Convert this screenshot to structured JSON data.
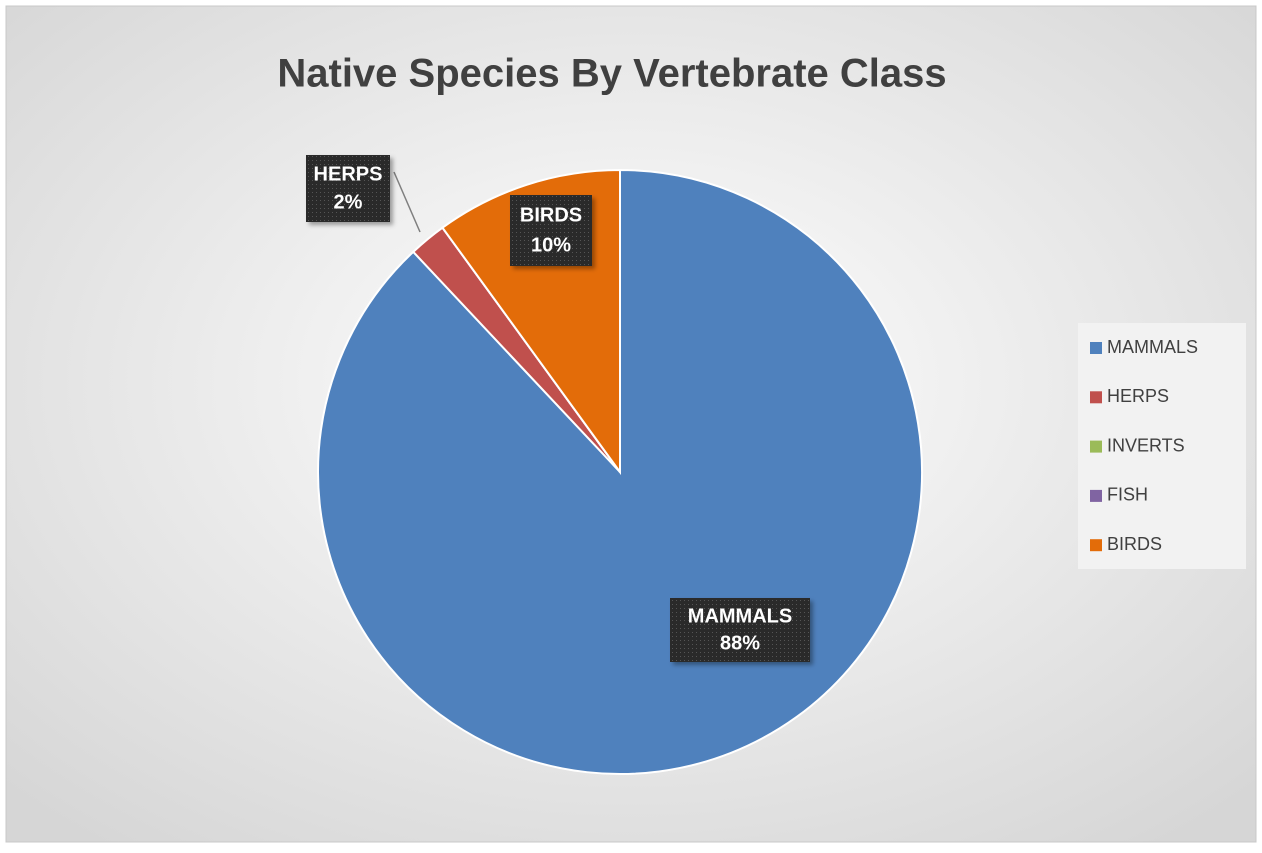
{
  "chart_data": {
    "type": "pie",
    "title": "Native Species By Vertebrate Class",
    "categories": [
      "MAMMALS",
      "HERPS",
      "INVERTS",
      "FISH",
      "BIRDS"
    ],
    "values": [
      88,
      2,
      0,
      0,
      10
    ],
    "value_labels": [
      "88%",
      "2%",
      null,
      null,
      "10%"
    ],
    "colors": [
      "#4f81bd",
      "#c0504d",
      "#9bbb59",
      "#8064a2",
      "#e36c09"
    ],
    "legend": "right"
  }
}
